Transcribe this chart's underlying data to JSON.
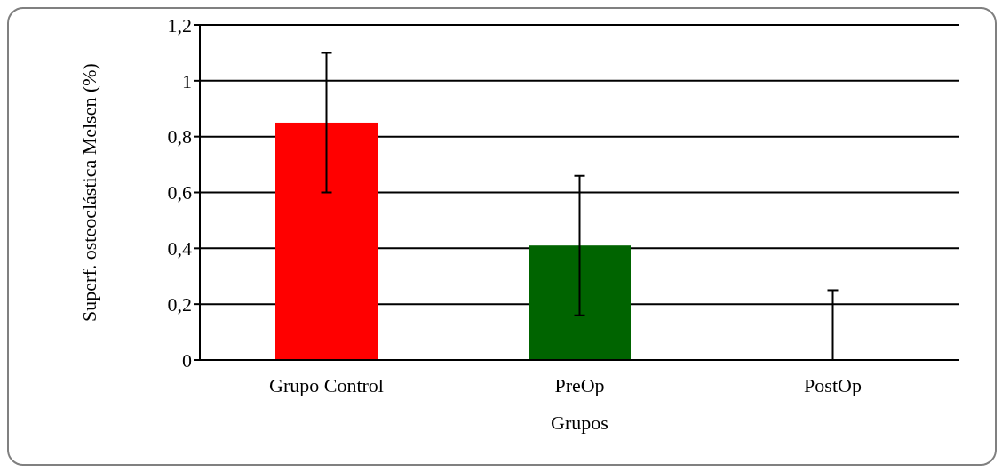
{
  "chart_data": {
    "type": "bar",
    "xlabel": "Grupos",
    "ylabel": "Superf. osteoclástica Melsen (%)",
    "categories": [
      "Grupo Control",
      "PreOp",
      "PostOp"
    ],
    "values": [
      0.85,
      0.41,
      0
    ],
    "colors": [
      "#ff0000",
      "#006400",
      "#006400"
    ],
    "errors": [
      0.25,
      0.25,
      [
        0,
        0.25
      ]
    ],
    "ylim": [
      0,
      1.2
    ],
    "yticks": [
      0,
      {
        "value": 0.2,
        "label": "0,2"
      },
      {
        "value": 0.4,
        "label": "0,4"
      },
      {
        "value": 0.6,
        "label": "0,6"
      },
      {
        "value": 0.8,
        "label": "0,8"
      },
      1,
      {
        "value": 1.2,
        "label": "1,2"
      }
    ],
    "grid": "y"
  }
}
